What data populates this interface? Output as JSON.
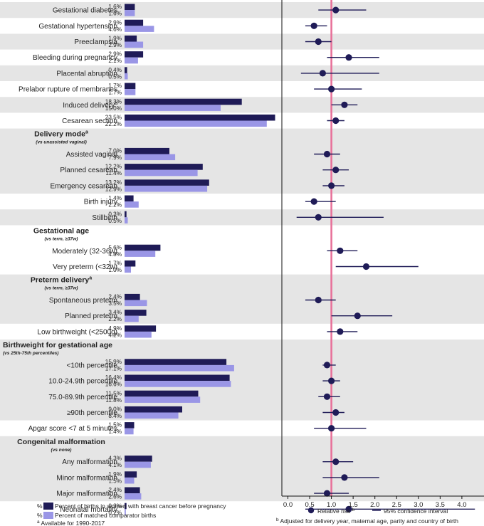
{
  "chart_data": {
    "type": "forest-plot-with-bars",
    "xlim": [
      0.0,
      4.25
    ],
    "xticks": [
      0.0,
      0.5,
      1.0,
      1.5,
      2.0,
      2.5,
      3.0,
      3.5,
      4.0
    ],
    "xtick_labels": [
      "0.0",
      "0.5",
      "1.0",
      "1.5",
      "2.0",
      "2.5",
      "3.0",
      "3.5",
      "4.0"
    ],
    "reference_line": 1.0,
    "colors": {
      "cancer": "#1f1b57",
      "comparator": "#9a96e6",
      "point": "#1f1b57",
      "reference": "#e8719a",
      "band": "#e5e5e5"
    },
    "legend": {
      "bars": [
        {
          "prefix": "%",
          "label": "Percent of births in women with breast cancer before pregnancy",
          "series": "cancer"
        },
        {
          "prefix": "%",
          "label": "Percent of matched comparator births",
          "series": "comparator"
        }
      ],
      "markers": [
        {
          "label": "Relative risk",
          "sup": "b"
        },
        {
          "label": "95% confidence interval"
        }
      ]
    },
    "footnotes": {
      "a": {
        "sup": "a",
        "text": "Available for 1990-2017"
      },
      "b": {
        "sup": "b",
        "text": "Adjusted for delivery year, maternal age, parity and country of birth"
      }
    },
    "sections": [
      {
        "header": null,
        "subheader": null,
        "rows": [
          {
            "label": "Gestational diabetes",
            "cancer": 1.6,
            "comp": 1.6,
            "rr": 1.1,
            "lo": 0.7,
            "hi": 1.8
          },
          {
            "label": "Gestational hypertension",
            "cancer": 2.9,
            "comp": 4.6,
            "rr": 0.6,
            "lo": 0.4,
            "hi": 0.9
          },
          {
            "label": "Preeclampsia",
            "cancer": 1.9,
            "comp": 2.9,
            "rr": 0.7,
            "lo": 0.4,
            "hi": 1.0
          },
          {
            "label": "Bleeding during pregnancy",
            "cancer": 2.9,
            "comp": 2.1,
            "rr": 1.4,
            "lo": 0.9,
            "hi": 2.1
          },
          {
            "label": "Placental abruption",
            "cancer": 0.4,
            "comp": 0.5,
            "rr": 0.8,
            "lo": 0.3,
            "hi": 2.1
          },
          {
            "label": "Prelabor rupture of membranes",
            "cancer": 1.7,
            "comp": 1.7,
            "rr": 1.0,
            "lo": 0.6,
            "hi": 1.7
          },
          {
            "label": "Induced delivery",
            "sup": "a",
            "cancer": 18.3,
            "comp": 15.0,
            "rr": 1.3,
            "lo": 1.0,
            "hi": 1.6
          },
          {
            "label": "Cesarean section",
            "cancer": 23.5,
            "comp": 22.2,
            "rr": 1.1,
            "lo": 0.9,
            "hi": 1.3
          }
        ]
      },
      {
        "header": "Delivery mode",
        "header_sup": "a",
        "subheader": "(vs unassisted vaginal)",
        "rows": [
          {
            "label": "Assisted vaginal",
            "cancer": 7.0,
            "comp": 7.9,
            "rr": 0.9,
            "lo": 0.6,
            "hi": 1.2
          },
          {
            "label": "Planned cesarean",
            "cancer": 12.2,
            "comp": 11.4,
            "rr": 1.1,
            "lo": 0.8,
            "hi": 1.4
          },
          {
            "label": "Emergency cesarean",
            "cancer": 13.2,
            "comp": 12.9,
            "rr": 1.0,
            "lo": 0.8,
            "hi": 1.3
          },
          {
            "label": "Birth injury",
            "cancer": 1.4,
            "comp": 2.2,
            "rr": 0.6,
            "lo": 0.4,
            "hi": 1.1
          },
          {
            "label": "Stillbirth",
            "cancer": 0.3,
            "comp": 0.5,
            "rr": 0.7,
            "lo": 0.2,
            "hi": 2.2
          }
        ]
      },
      {
        "header": "Gestational age",
        "subheader": "(vs term, ≥37w)",
        "rows": [
          {
            "label": "Moderately (32-36w)",
            "cancer": 5.6,
            "comp": 4.8,
            "rr": 1.2,
            "lo": 0.9,
            "hi": 1.6
          },
          {
            "label": "Very preterm (<32w)",
            "cancer": 1.7,
            "comp": 1.0,
            "rr": 1.8,
            "lo": 1.1,
            "hi": 3.0
          }
        ]
      },
      {
        "header": "Preterm delivery",
        "header_sup": "a",
        "subheader": "(vs term, ≥37w)",
        "rows": [
          {
            "label": "Spontaneous preterm",
            "cancer": 2.4,
            "comp": 3.5,
            "rr": 0.7,
            "lo": 0.4,
            "hi": 1.1
          },
          {
            "label": "Planned preterm",
            "cancer": 3.4,
            "comp": 2.2,
            "rr": 1.6,
            "lo": 1.0,
            "hi": 2.4
          },
          {
            "label": "Low birthweight (<2500g)",
            "cancer": 4.9,
            "comp": 4.2,
            "rr": 1.2,
            "lo": 0.9,
            "hi": 1.6
          }
        ]
      },
      {
        "header": "Birthweight for gestational age",
        "subheader": "(vs 25th-75th percentiles)",
        "rows": [
          {
            "label": "<10th percentile",
            "cancer": 15.9,
            "comp": 17.1,
            "rr": 0.9,
            "lo": 0.8,
            "hi": 1.1
          },
          {
            "label": "10.0-24.9th percentile",
            "cancer": 16.4,
            "comp": 16.6,
            "rr": 1.0,
            "lo": 0.8,
            "hi": 1.2
          },
          {
            "label": "75.0-89.9th percentile",
            "cancer": 11.5,
            "comp": 11.8,
            "rr": 0.9,
            "lo": 0.7,
            "hi": 1.2
          },
          {
            "label": "≥90th percentile",
            "cancer": 9.0,
            "comp": 8.4,
            "rr": 1.1,
            "lo": 0.8,
            "hi": 1.3
          },
          {
            "label": "Apgar score <7 at 5 minutes",
            "cancer": 1.5,
            "comp": 1.4,
            "rr": 1.0,
            "lo": 0.6,
            "hi": 1.8
          }
        ]
      },
      {
        "header": "Congenital malformation",
        "subheader": "(vs none)",
        "rows": [
          {
            "label": "Any malformation",
            "cancer": 4.3,
            "comp": 4.1,
            "rr": 1.1,
            "lo": 0.8,
            "hi": 1.5
          },
          {
            "label": "Minor malformation",
            "cancer": 1.9,
            "comp": 1.5,
            "rr": 1.3,
            "lo": 0.8,
            "hi": 2.1
          },
          {
            "label": "Major malformation",
            "cancer": 2.4,
            "comp": 2.6,
            "rr": 0.9,
            "lo": 0.6,
            "hi": 1.4
          },
          {
            "label": "Neonatal mortality",
            "cancer": 0.3,
            "comp": 0.2,
            "rr": 1.4,
            "lo": 0.4,
            "hi": 4.3
          }
        ]
      }
    ]
  }
}
